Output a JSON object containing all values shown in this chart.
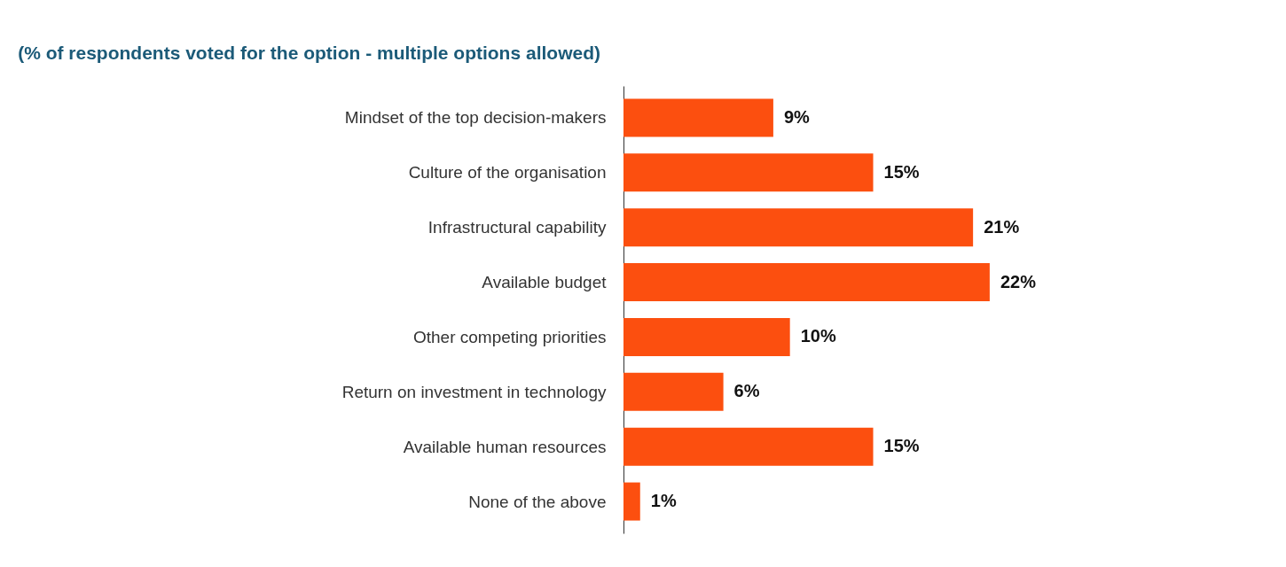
{
  "chart_data": {
    "type": "bar",
    "orientation": "horizontal",
    "title": "(% of respondents voted for the option - multiple options allowed)",
    "categories": [
      "Mindset of the top decision-makers",
      "Culture of the organisation",
      "Infrastructural capability",
      "Available budget",
      "Other competing priorities",
      "Return on investment in technology",
      "Available human resources",
      "None of the above"
    ],
    "values": [
      9,
      15,
      21,
      22,
      10,
      6,
      15,
      1
    ],
    "value_labels": [
      "9%",
      "15%",
      "21%",
      "22%",
      "10%",
      "6%",
      "15%",
      "1%"
    ],
    "color": "#fc4f0f"
  }
}
